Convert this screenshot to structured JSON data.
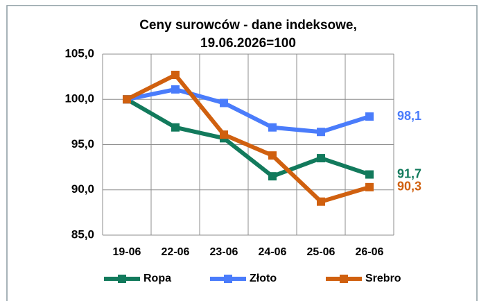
{
  "chart_data": {
    "type": "line",
    "title": [
      "Ceny surowców - dane indeksowe,",
      "19.06.2026=100"
    ],
    "categories": [
      "19-06",
      "22-06",
      "23-06",
      "24-06",
      "25-06",
      "26-06"
    ],
    "series": [
      {
        "name": "Ropa",
        "color": "#127a5c",
        "values": [
          100,
          96.9,
          95.7,
          91.5,
          93.5,
          91.7
        ],
        "value_labels": [
          null,
          null,
          null,
          null,
          null,
          "91,7"
        ]
      },
      {
        "name": "Złoto",
        "color": "#4a7cfb",
        "values": [
          100,
          101.1,
          99.6,
          96.9,
          96.4,
          98.1
        ],
        "value_labels": [
          null,
          null,
          null,
          null,
          null,
          "98,1"
        ]
      },
      {
        "name": "Srebro",
        "color": "#d0600f",
        "values": [
          100,
          102.7,
          96.1,
          93.8,
          88.7,
          90.3
        ],
        "value_labels": [
          null,
          null,
          null,
          null,
          null,
          "90,3"
        ]
      }
    ],
    "ylim": [
      85,
      105
    ],
    "yticks": [
      {
        "value": 85,
        "label": "85,0"
      },
      {
        "value": 90,
        "label": "90,0"
      },
      {
        "value": 95,
        "label": "95,0"
      },
      {
        "value": 100,
        "label": "100,0"
      },
      {
        "value": 105,
        "label": "105,0"
      }
    ],
    "grid": true,
    "legend": "bottom"
  }
}
